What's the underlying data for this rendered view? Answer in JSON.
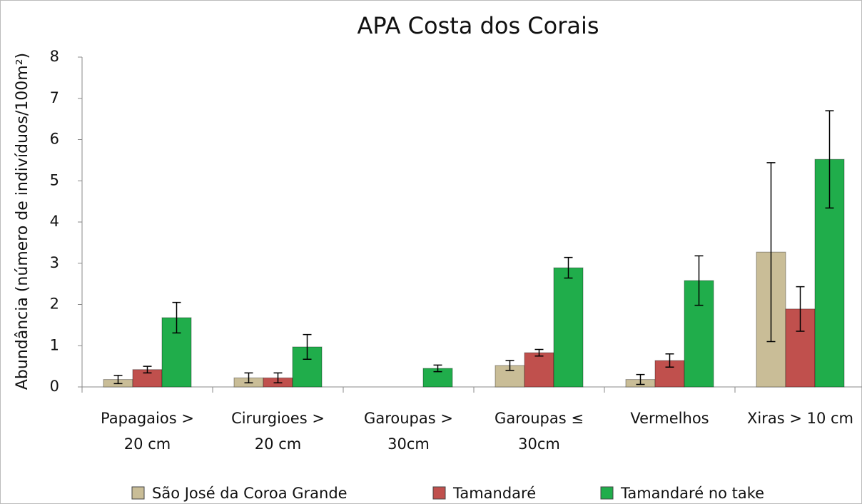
{
  "chart_data": {
    "type": "bar",
    "title": "APA Costa dos Corais",
    "y_label": "Abundância (número de indivíduos/100m²)",
    "categories": [
      "Papagaios > 20 cm",
      "Cirurgioes > 20 cm",
      "Garoupas > 30cm",
      "Garoupas ≤ 30cm",
      "Vermelhos",
      "Xiras > 10 cm"
    ],
    "series": [
      {
        "name": "São José da Coroa Grande",
        "color": "#c9bd97",
        "values": [
          0.18,
          0.22,
          0,
          0.52,
          0.18,
          3.27
        ],
        "errors": [
          0.1,
          0.12,
          0,
          0.12,
          0.12,
          2.17
        ]
      },
      {
        "name": "Tamandaré",
        "color": "#c0504d",
        "values": [
          0.42,
          0.22,
          0,
          0.83,
          0.64,
          1.89
        ],
        "errors": [
          0.08,
          0.12,
          0,
          0.08,
          0.16,
          0.54
        ]
      },
      {
        "name": "Tamandaré no take",
        "color": "#20ad4b",
        "values": [
          1.68,
          0.97,
          0.45,
          2.89,
          2.58,
          5.52
        ],
        "errors": [
          0.37,
          0.3,
          0.08,
          0.25,
          0.6,
          1.18
        ]
      }
    ],
    "ylim": [
      0,
      8
    ],
    "yticks": [
      0,
      1,
      2,
      3,
      4,
      5,
      6,
      7,
      8
    ],
    "grid": false,
    "legend": "bottom"
  }
}
